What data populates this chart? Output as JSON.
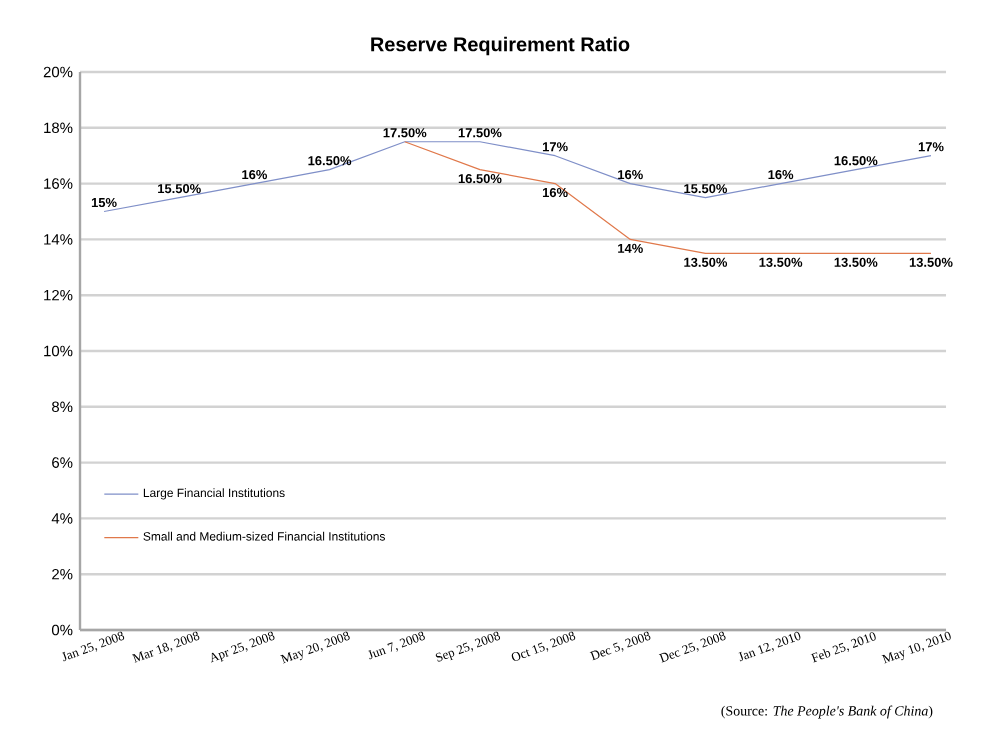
{
  "chart_data": {
    "type": "line",
    "title": "Reserve Requirement Ratio",
    "categories": [
      "Jan 25, 2008",
      "Mar 18, 2008",
      "Apr 25, 2008",
      "May 20, 2008",
      "Jun 7, 2008",
      "Sep 25, 2008",
      "Oct 15, 2008",
      "Dec 5, 2008",
      "Dec 25, 2008",
      "Jan 12, 2010",
      "Feb 25, 2010",
      "May 10, 2010"
    ],
    "series": [
      {
        "name": "Large Financial Institutions",
        "color": "#7f8fc8",
        "values": [
          15,
          15.5,
          16,
          16.5,
          17.5,
          17.5,
          17,
          16,
          15.5,
          16,
          16.5,
          17
        ],
        "value_labels": [
          "15%",
          "15.50%",
          "16%",
          "16.50%",
          "17.50%",
          "17.50%",
          "17%",
          "16%",
          "15.50%",
          "16%",
          "16.50%",
          "17%"
        ]
      },
      {
        "name": "Small and Medium-sized Financial Institutions",
        "color": "#e0784a",
        "values": [
          null,
          null,
          null,
          null,
          17.5,
          16.5,
          16,
          14,
          13.5,
          13.5,
          13.5,
          13.5
        ],
        "value_labels": [
          null,
          null,
          null,
          null,
          null,
          "16.50%",
          "16%",
          "14%",
          "13.50%",
          "13.50%",
          "13.50%",
          "13.50%"
        ]
      }
    ],
    "ylim": [
      0,
      20
    ],
    "yticks": [
      {
        "value": 0,
        "label": "0%"
      },
      {
        "value": 2,
        "label": "2%"
      },
      {
        "value": 4,
        "label": "4%"
      },
      {
        "value": 6,
        "label": "6%"
      },
      {
        "value": 8,
        "label": "8%"
      },
      {
        "value": 10,
        "label": "10%"
      },
      {
        "value": 12,
        "label": "12%"
      },
      {
        "value": 14,
        "label": "14%"
      },
      {
        "value": 16,
        "label": "16%"
      },
      {
        "value": 18,
        "label": "18%"
      },
      {
        "value": 20,
        "label": "20%"
      }
    ],
    "grid": "y",
    "legend": "bottom left",
    "marker": "none",
    "line_style": "solid",
    "annotations": [
      "(Source: *The People's Bank of China*)"
    ]
  }
}
